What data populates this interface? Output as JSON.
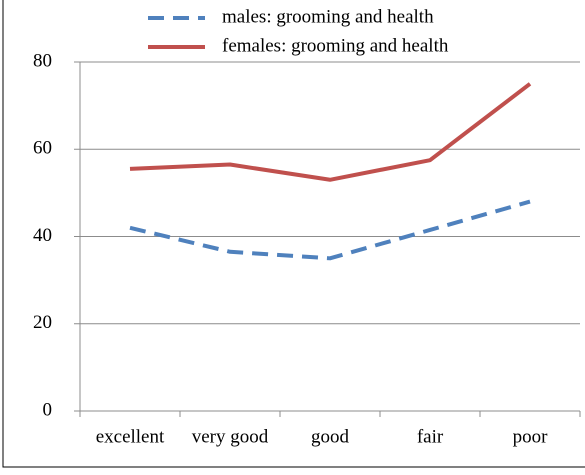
{
  "chart_data": {
    "type": "line",
    "categories": [
      "excellent",
      "very good",
      "good",
      "fair",
      "poor"
    ],
    "series": [
      {
        "name": "males: grooming and health",
        "color": "#4f81bd",
        "dashed": true,
        "values": [
          42,
          36.5,
          35,
          41.5,
          48
        ]
      },
      {
        "name": "females: grooming and health",
        "color": "#c0504d",
        "dashed": false,
        "values": [
          55.5,
          56.5,
          53,
          57.5,
          75
        ]
      }
    ],
    "ylim": [
      0,
      80
    ],
    "yticks": [
      0,
      20,
      40,
      60,
      80
    ],
    "grid": true
  }
}
